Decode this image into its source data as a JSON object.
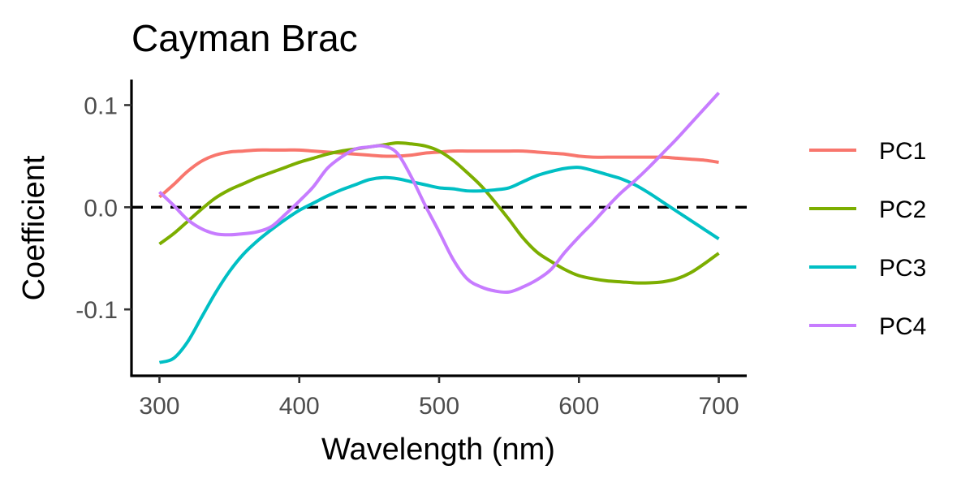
{
  "chart_data": {
    "type": "line",
    "title": "Cayman Brac",
    "xlabel": "Wavelength (nm)",
    "ylabel": "Coefficient",
    "xlim": [
      280,
      720
    ],
    "ylim": [
      -0.165,
      0.125
    ],
    "x_ticks": [
      300,
      400,
      500,
      600,
      700
    ],
    "x_tick_labels": [
      "300",
      "400",
      "500",
      "600",
      "700"
    ],
    "y_ticks": [
      0.1,
      0.0,
      -0.1
    ],
    "y_tick_labels": [
      "0.1",
      "0.0",
      "-0.1"
    ],
    "grid": false,
    "legend_position": "right",
    "reference_line": {
      "y": 0,
      "style": "dashed",
      "color": "#000000"
    },
    "x": [
      300,
      310,
      320,
      330,
      340,
      350,
      360,
      370,
      380,
      390,
      400,
      410,
      420,
      430,
      440,
      450,
      460,
      470,
      480,
      490,
      500,
      510,
      520,
      530,
      540,
      550,
      560,
      570,
      580,
      590,
      600,
      610,
      620,
      630,
      640,
      650,
      660,
      670,
      680,
      690,
      700
    ],
    "series": [
      {
        "name": "PC1",
        "color": "#F8766D",
        "values": [
          0.01,
          0.022,
          0.035,
          0.045,
          0.051,
          0.054,
          0.055,
          0.056,
          0.056,
          0.056,
          0.056,
          0.055,
          0.054,
          0.053,
          0.052,
          0.051,
          0.05,
          0.05,
          0.051,
          0.053,
          0.054,
          0.055,
          0.055,
          0.055,
          0.055,
          0.055,
          0.055,
          0.054,
          0.053,
          0.052,
          0.05,
          0.049,
          0.049,
          0.049,
          0.049,
          0.049,
          0.049,
          0.048,
          0.047,
          0.046,
          0.044
        ]
      },
      {
        "name": "PC2",
        "color": "#7CAE00",
        "values": [
          -0.036,
          -0.026,
          -0.014,
          -0.002,
          0.009,
          0.017,
          0.023,
          0.029,
          0.034,
          0.039,
          0.044,
          0.048,
          0.052,
          0.055,
          0.057,
          0.059,
          0.061,
          0.063,
          0.062,
          0.06,
          0.055,
          0.046,
          0.034,
          0.021,
          0.005,
          -0.012,
          -0.03,
          -0.044,
          -0.053,
          -0.061,
          -0.067,
          -0.07,
          -0.072,
          -0.073,
          -0.074,
          -0.074,
          -0.073,
          -0.07,
          -0.064,
          -0.055,
          -0.045
        ]
      },
      {
        "name": "PC3",
        "color": "#00BFC4",
        "values": [
          -0.152,
          -0.148,
          -0.132,
          -0.108,
          -0.084,
          -0.063,
          -0.046,
          -0.033,
          -0.022,
          -0.012,
          -0.003,
          0.004,
          0.011,
          0.017,
          0.022,
          0.027,
          0.029,
          0.028,
          0.025,
          0.022,
          0.019,
          0.018,
          0.016,
          0.016,
          0.017,
          0.019,
          0.025,
          0.031,
          0.035,
          0.038,
          0.039,
          0.036,
          0.032,
          0.028,
          0.022,
          0.014,
          0.005,
          -0.004,
          -0.013,
          -0.022,
          -0.031
        ]
      },
      {
        "name": "PC4",
        "color": "#C77CFF",
        "values": [
          0.015,
          0.002,
          -0.012,
          -0.021,
          -0.026,
          -0.027,
          -0.026,
          -0.024,
          -0.019,
          -0.007,
          0.006,
          0.02,
          0.038,
          0.049,
          0.057,
          0.059,
          0.06,
          0.053,
          0.03,
          0.002,
          -0.024,
          -0.051,
          -0.07,
          -0.078,
          -0.082,
          -0.083,
          -0.078,
          -0.071,
          -0.061,
          -0.044,
          -0.029,
          -0.015,
          0.0,
          0.014,
          0.026,
          0.039,
          0.053,
          0.067,
          0.082,
          0.097,
          0.112
        ]
      }
    ]
  }
}
